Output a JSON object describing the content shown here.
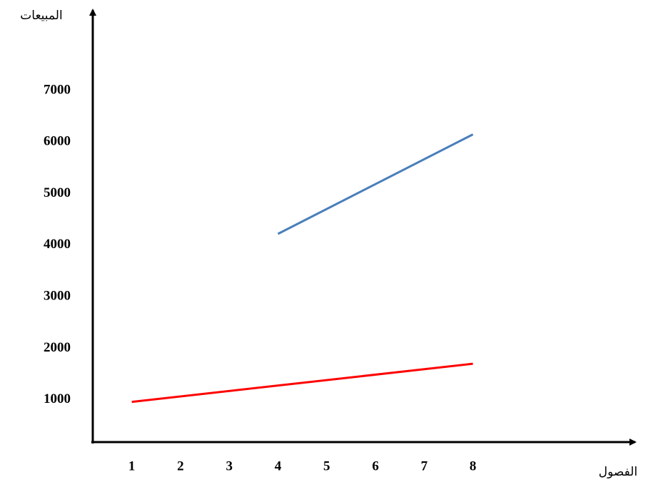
{
  "chart_data": {
    "type": "line",
    "x_label": "الفصول",
    "y_label": "المبيعات",
    "xlim": [
      0.2,
      11.3
    ],
    "xticks": [
      1,
      2,
      3,
      4,
      5,
      6,
      7,
      8
    ],
    "ylim": [
      180,
      8550
    ],
    "yticks": [
      1000,
      2000,
      3000,
      4000,
      5000,
      6000,
      7000
    ],
    "grid": false,
    "series": [
      {
        "color": "#4a7ebb",
        "x": [
          4,
          8
        ],
        "values": [
          4220,
          6150
        ]
      },
      {
        "color": "#ff0000",
        "x": [
          1,
          8
        ],
        "values": [
          960,
          1700
        ]
      }
    ]
  }
}
